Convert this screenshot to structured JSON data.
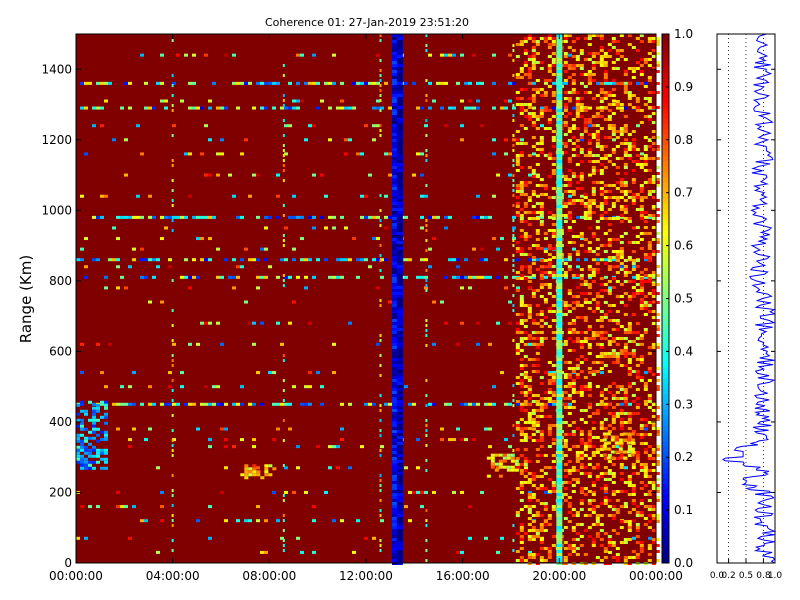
{
  "chart_data": [
    {
      "type": "heatmap",
      "title": "Coherence 01: 27-Jan-2019 23:51:20",
      "xlabel": "",
      "ylabel": "Range (Km)",
      "x_ticks": [
        "00:00:00",
        "04:00:00",
        "08:00:00",
        "12:00:00",
        "16:00:00",
        "20:00:00",
        "00:00:00"
      ],
      "x_range_hours": [
        0,
        24
      ],
      "y_ticks": [
        "0",
        "200",
        "400",
        "600",
        "800",
        "1000",
        "1200",
        "1400"
      ],
      "ylim": [
        0,
        1500
      ],
      "colormap": "jet",
      "clim": [
        0,
        1
      ],
      "background_value": 1.0,
      "colorbar_ticks": [
        "0.0",
        "0.1",
        "0.2",
        "0.3",
        "0.4",
        "0.5",
        "0.6",
        "0.7",
        "0.8",
        "0.9",
        "1.0"
      ],
      "low_coherence_columns_hours": [
        {
          "hour": 13.2,
          "value": 0.1
        },
        {
          "hour": 13.4,
          "value": 0.05
        },
        {
          "hour": 20.0,
          "value": 0.45
        }
      ],
      "noisy_rows_km": [
        30,
        70,
        120,
        160,
        200,
        270,
        330,
        350,
        380,
        450,
        500,
        540,
        620,
        680,
        740,
        780,
        810,
        840,
        860,
        890,
        920,
        950,
        980,
        1040,
        1100,
        1160,
        1200,
        1240,
        1290,
        1310,
        1360,
        1440
      ],
      "strong_rows_km": [
        450,
        810,
        860,
        980,
        1290,
        1360
      ],
      "degraded_region": {
        "start_hour": 18.2,
        "end_hour": 24,
        "value_range": [
          0.55,
          0.9
        ]
      },
      "patches": [
        {
          "hour_start": 0.0,
          "hour_end": 1.3,
          "km_start": 270,
          "km_end": 460,
          "value": 0.3
        },
        {
          "hour_start": 17.0,
          "hour_end": 18.2,
          "km_start": 250,
          "km_end": 310,
          "value": 0.65
        },
        {
          "hour_start": 21.8,
          "hour_end": 23.0,
          "km_start": 300,
          "km_end": 370,
          "value": 0.7
        },
        {
          "hour_start": 6.8,
          "hour_end": 8.2,
          "km_start": 240,
          "km_end": 280,
          "value": 0.7
        }
      ]
    },
    {
      "type": "line",
      "title": "",
      "xlabel": "",
      "ylabel": "",
      "xlim": [
        0,
        1
      ],
      "ylim": [
        0,
        1500
      ],
      "x_ticks": [
        "0.0",
        "0.2",
        "0.5",
        "0.8",
        "1.0"
      ],
      "x_tick_values": [
        0.0,
        0.2,
        0.5,
        0.8,
        1.0
      ],
      "grid_lines_x": [
        0.2,
        0.5,
        0.8
      ],
      "line_color": "#0000ff",
      "series": [
        {
          "km": [
            0,
            40,
            80,
            120,
            160,
            200,
            230,
            260,
            290,
            320,
            350,
            380,
            420,
            450,
            500,
            550,
            600,
            650,
            700,
            750,
            800,
            850,
            900,
            950,
            1000,
            1050,
            1100,
            1150,
            1200,
            1250,
            1300,
            1350,
            1400,
            1450,
            1500
          ],
          "value": [
            0.95,
            0.8,
            0.9,
            0.75,
            0.85,
            0.8,
            0.4,
            0.9,
            0.1,
            0.3,
            0.9,
            0.75,
            0.85,
            0.7,
            0.85,
            0.8,
            0.9,
            0.75,
            0.88,
            0.8,
            0.7,
            0.75,
            0.7,
            0.8,
            0.72,
            0.8,
            0.75,
            0.85,
            0.78,
            0.8,
            0.72,
            0.78,
            0.75,
            0.8,
            0.85
          ]
        }
      ]
    }
  ]
}
